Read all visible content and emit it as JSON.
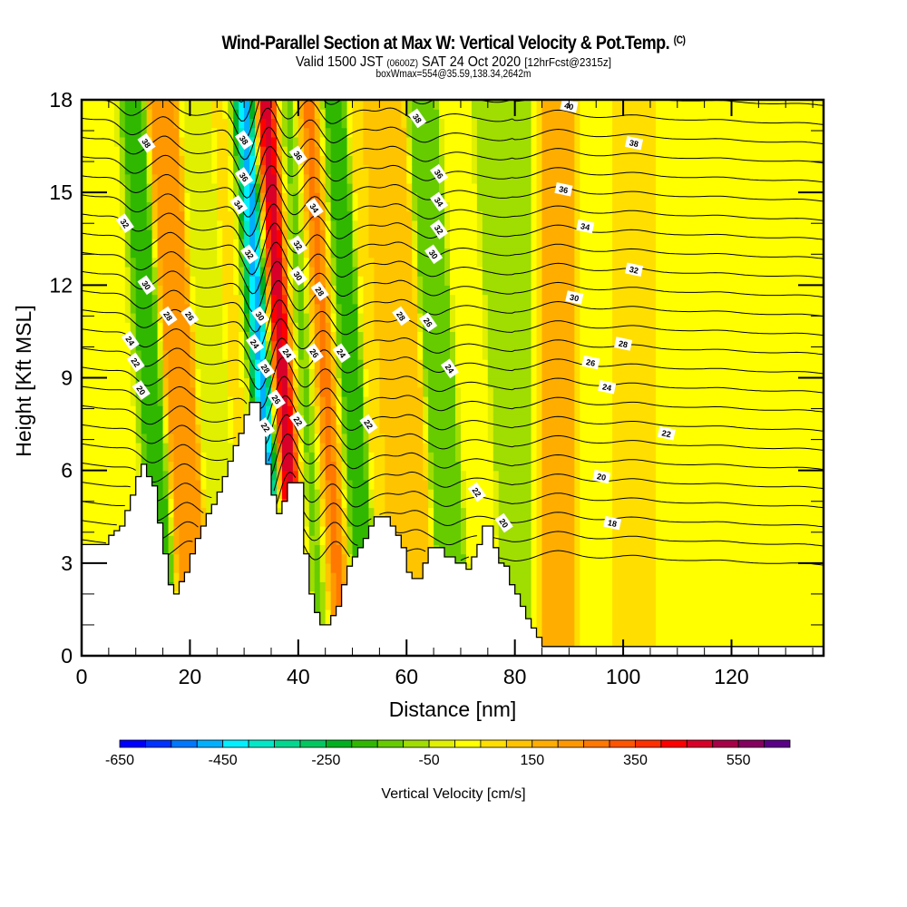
{
  "header": {
    "title": "Wind-Parallel Section at Max W: Vertical Velocity & Pot.Temp.",
    "copyright": "(C)",
    "valid_prefix": "Valid 1500 JST",
    "valid_utc": "(0600Z)",
    "valid_suffix": "SAT 24 Oct 2020",
    "forecast": "[12hrFcst@2315z]",
    "box_info": "boxWmax=554@35.59,138.34,2642m"
  },
  "chart_data": {
    "type": "heatmap",
    "title": "Wind-Parallel Section at Max W: Vertical Velocity & Pot.Temp.",
    "xlabel": "Distance [nm]",
    "ylabel": "Height [Kft MSL]",
    "xlim": [
      0,
      137
    ],
    "ylim": [
      0,
      18
    ],
    "xticks": [
      0,
      20,
      40,
      60,
      80,
      100,
      120
    ],
    "xtick_labels": [
      "0",
      "20",
      "40",
      "60",
      "80",
      "100",
      "120"
    ],
    "yticks": [
      0,
      3,
      6,
      9,
      12,
      15,
      18
    ],
    "ytick_labels": [
      "0",
      "3",
      "6",
      "9",
      "12",
      "15",
      "18"
    ],
    "colorbar": {
      "title": "Vertical Velocity [cm/s]",
      "placement": "bottom",
      "min": -650,
      "max": 650,
      "step": 50,
      "tick_values": [
        -650,
        -450,
        -250,
        -50,
        150,
        350,
        550
      ],
      "tick_labels": [
        "-650",
        "-450",
        "-250",
        "-50",
        "150",
        "350",
        "550"
      ],
      "colors": [
        "#0000ff",
        "#0033ff",
        "#0077ff",
        "#00b0ff",
        "#00f0ff",
        "#00e8c8",
        "#00d890",
        "#00c860",
        "#00b020",
        "#30b800",
        "#66cc00",
        "#a0dd00",
        "#e0f000",
        "#ffff00",
        "#ffde00",
        "#ffc400",
        "#ffae00",
        "#ff9800",
        "#ff7800",
        "#ff5500",
        "#ff3000",
        "#ff0000",
        "#d80028",
        "#a80048",
        "#860060",
        "#5a0088"
      ]
    },
    "terrain_kft": {
      "distance_nm": [
        0,
        4.5,
        5,
        7,
        8,
        9,
        10,
        11,
        12,
        13,
        14,
        15,
        16,
        17,
        18,
        19,
        20,
        21,
        22,
        23,
        24,
        25,
        26,
        27,
        28,
        29,
        30,
        31,
        32,
        33,
        34,
        35,
        36,
        37,
        38,
        39,
        40,
        41,
        42,
        43,
        44,
        45,
        46,
        47,
        48,
        49,
        50,
        51,
        52,
        53,
        54,
        55,
        56,
        57,
        58,
        59,
        60,
        61,
        62,
        63,
        64,
        65,
        66,
        67,
        68,
        69,
        70,
        71,
        72,
        73,
        74,
        75,
        76,
        77,
        78,
        79,
        80,
        81,
        82,
        83,
        84,
        85,
        86,
        137
      ],
      "height_kft": [
        3.6,
        3.6,
        3.9,
        4.2,
        4.7,
        5.2,
        5.8,
        6.2,
        5.8,
        5.5,
        4.3,
        3.3,
        2.3,
        2.0,
        2.4,
        2.7,
        3.3,
        3.8,
        4.2,
        4.6,
        4.9,
        5.3,
        5.8,
        6.3,
        6.8,
        7.2,
        7.8,
        8.2,
        8.2,
        7.5,
        6.2,
        5.2,
        4.6,
        5.0,
        5.6,
        5.6,
        5.6,
        3.3,
        2.0,
        1.4,
        1.0,
        1.0,
        1.3,
        1.6,
        2.3,
        2.9,
        3.2,
        3.5,
        3.8,
        4.2,
        4.5,
        4.5,
        4.5,
        4.2,
        3.9,
        3.5,
        2.7,
        2.5,
        2.5,
        3.0,
        3.5,
        3.5,
        3.5,
        3.2,
        3.2,
        3.0,
        3.0,
        2.8,
        3.2,
        3.6,
        4.2,
        4.2,
        3.5,
        3.0,
        2.9,
        2.3,
        2.0,
        1.6,
        1.2,
        0.9,
        0.6,
        0.3,
        0.3,
        0.3
      ]
    },
    "vertical_velocity_bands": [
      {
        "center_nm": 4,
        "value_cms": 0
      },
      {
        "center_nm": 8,
        "value_cms": 50
      },
      {
        "center_nm": 12,
        "value_cms": -200
      },
      {
        "center_nm": 18,
        "value_cms": 250
      },
      {
        "center_nm": 24,
        "value_cms": -50
      },
      {
        "center_nm": 30,
        "value_cms": 100
      },
      {
        "center_nm": 33,
        "value_cms": -600
      },
      {
        "center_nm": 37,
        "value_cms": 550
      },
      {
        "center_nm": 41,
        "value_cms": -150
      },
      {
        "center_nm": 45,
        "value_cms": 300
      },
      {
        "center_nm": 49,
        "value_cms": -200
      },
      {
        "center_nm": 55,
        "value_cms": 100
      },
      {
        "center_nm": 60,
        "value_cms": 150
      },
      {
        "center_nm": 66,
        "value_cms": -150
      },
      {
        "center_nm": 72,
        "value_cms": 50
      },
      {
        "center_nm": 80,
        "value_cms": -100
      },
      {
        "center_nm": 88,
        "value_cms": 200
      },
      {
        "center_nm": 95,
        "value_cms": 0
      },
      {
        "center_nm": 102,
        "value_cms": 100
      },
      {
        "center_nm": 110,
        "value_cms": 0
      },
      {
        "center_nm": 118,
        "value_cms": 50
      },
      {
        "center_nm": 125,
        "value_cms": 0
      },
      {
        "center_nm": 133,
        "value_cms": 50
      }
    ],
    "pot_temp_contour_labels": [
      {
        "value": "38",
        "x_nm": 12,
        "y_kft": 16.6
      },
      {
        "value": "32",
        "x_nm": 8,
        "y_kft": 14.0
      },
      {
        "value": "30",
        "x_nm": 12,
        "y_kft": 12.0
      },
      {
        "value": "28",
        "x_nm": 16,
        "y_kft": 11.0
      },
      {
        "value": "26",
        "x_nm": 20,
        "y_kft": 11.0
      },
      {
        "value": "24",
        "x_nm": 9,
        "y_kft": 10.2
      },
      {
        "value": "22",
        "x_nm": 10,
        "y_kft": 9.5
      },
      {
        "value": "20",
        "x_nm": 11,
        "y_kft": 8.6
      },
      {
        "value": "38",
        "x_nm": 30,
        "y_kft": 16.7
      },
      {
        "value": "36",
        "x_nm": 30,
        "y_kft": 15.5
      },
      {
        "value": "34",
        "x_nm": 29,
        "y_kft": 14.6
      },
      {
        "value": "32",
        "x_nm": 31,
        "y_kft": 13.0
      },
      {
        "value": "30",
        "x_nm": 33,
        "y_kft": 11.0
      },
      {
        "value": "24",
        "x_nm": 32,
        "y_kft": 10.1
      },
      {
        "value": "28",
        "x_nm": 34,
        "y_kft": 9.3
      },
      {
        "value": "26",
        "x_nm": 36,
        "y_kft": 8.3
      },
      {
        "value": "22",
        "x_nm": 34,
        "y_kft": 7.4
      },
      {
        "value": "36",
        "x_nm": 40,
        "y_kft": 16.2
      },
      {
        "value": "34",
        "x_nm": 43,
        "y_kft": 14.5
      },
      {
        "value": "32",
        "x_nm": 40,
        "y_kft": 13.3
      },
      {
        "value": "30",
        "x_nm": 40,
        "y_kft": 12.3
      },
      {
        "value": "28",
        "x_nm": 44,
        "y_kft": 11.8
      },
      {
        "value": "24",
        "x_nm": 38,
        "y_kft": 9.8
      },
      {
        "value": "26",
        "x_nm": 43,
        "y_kft": 9.8
      },
      {
        "value": "24",
        "x_nm": 48,
        "y_kft": 9.8
      },
      {
        "value": "22",
        "x_nm": 40,
        "y_kft": 7.6
      },
      {
        "value": "22",
        "x_nm": 53,
        "y_kft": 7.5
      },
      {
        "value": "38",
        "x_nm": 62,
        "y_kft": 17.4
      },
      {
        "value": "36",
        "x_nm": 66,
        "y_kft": 15.6
      },
      {
        "value": "34",
        "x_nm": 66,
        "y_kft": 14.7
      },
      {
        "value": "32",
        "x_nm": 66,
        "y_kft": 13.8
      },
      {
        "value": "30",
        "x_nm": 65,
        "y_kft": 13.0
      },
      {
        "value": "28",
        "x_nm": 59,
        "y_kft": 11.0
      },
      {
        "value": "26",
        "x_nm": 64,
        "y_kft": 10.8
      },
      {
        "value": "24",
        "x_nm": 68,
        "y_kft": 9.3
      },
      {
        "value": "22",
        "x_nm": 73,
        "y_kft": 5.3
      },
      {
        "value": "20",
        "x_nm": 78,
        "y_kft": 4.3
      },
      {
        "value": "40",
        "x_nm": 90,
        "y_kft": 17.8
      },
      {
        "value": "38",
        "x_nm": 102,
        "y_kft": 16.6
      },
      {
        "value": "36",
        "x_nm": 89,
        "y_kft": 15.1
      },
      {
        "value": "34",
        "x_nm": 93,
        "y_kft": 13.9
      },
      {
        "value": "32",
        "x_nm": 102,
        "y_kft": 12.5
      },
      {
        "value": "30",
        "x_nm": 91,
        "y_kft": 11.6
      },
      {
        "value": "28",
        "x_nm": 100,
        "y_kft": 10.1
      },
      {
        "value": "26",
        "x_nm": 94,
        "y_kft": 9.5
      },
      {
        "value": "24",
        "x_nm": 97,
        "y_kft": 8.7
      },
      {
        "value": "22",
        "x_nm": 108,
        "y_kft": 7.2
      },
      {
        "value": "20",
        "x_nm": 96,
        "y_kft": 5.8
      },
      {
        "value": "18",
        "x_nm": 98,
        "y_kft": 4.3
      }
    ]
  }
}
